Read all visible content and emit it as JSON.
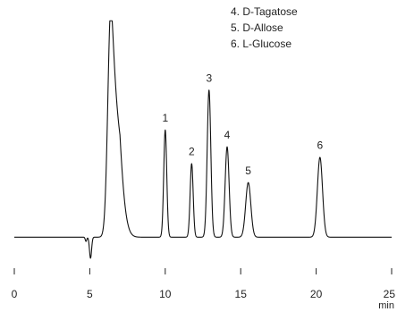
{
  "chart_data": {
    "type": "line",
    "title": "",
    "xlabel": "min",
    "ylabel": "",
    "xlim": [
      0,
      25
    ],
    "ylim": [
      0,
      100
    ],
    "x_ticks": [
      0,
      5,
      10,
      15,
      20,
      25
    ],
    "x_tick_labels": [
      "0",
      "5",
      "10",
      "15",
      "20",
      "25"
    ],
    "grid": false,
    "legend_position": "top-right",
    "legend_entries": [
      {
        "text": "4. D-Tagatose"
      },
      {
        "text": "5. D-Allose"
      },
      {
        "text": "6. L-Glucose"
      }
    ],
    "series": [
      {
        "color": "#111111",
        "baseline": 2,
        "peaks": [
          {
            "center": 4.75,
            "height": -2,
            "width": 0.05
          },
          {
            "center": 5.05,
            "height": -10,
            "width": 0.07
          },
          {
            "center": 6.4,
            "height": 110,
            "width": 0.2,
            "flat_top": 105,
            "tail": 0.45
          },
          {
            "center": 10.0,
            "height": 51,
            "width": 0.1
          },
          {
            "center": 11.75,
            "height": 35,
            "width": 0.1
          },
          {
            "center": 12.9,
            "height": 70,
            "width": 0.12
          },
          {
            "center": 14.1,
            "height": 43,
            "width": 0.13
          },
          {
            "center": 15.5,
            "height": 26,
            "width": 0.17
          },
          {
            "center": 20.25,
            "height": 38,
            "width": 0.17
          }
        ]
      }
    ],
    "peak_labels": [
      {
        "text": "1",
        "x": 10.0,
        "y": 57
      },
      {
        "text": "2",
        "x": 11.75,
        "y": 41
      },
      {
        "text": "3",
        "x": 12.9,
        "y": 76
      },
      {
        "text": "4",
        "x": 14.1,
        "y": 49
      },
      {
        "text": "5",
        "x": 15.5,
        "y": 32
      },
      {
        "text": "6",
        "x": 20.25,
        "y": 44
      }
    ]
  }
}
